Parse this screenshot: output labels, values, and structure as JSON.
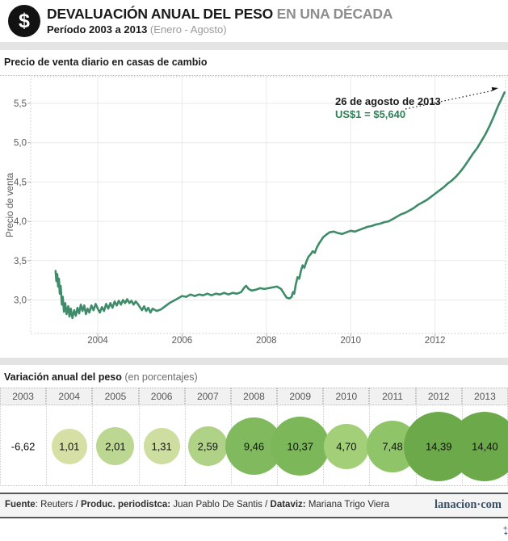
{
  "header": {
    "icon": "$",
    "title_main": "DEVALUACIÓN ANUAL DEL PESO",
    "title_accent": " EN UNA DÉCADA",
    "subtitle_bold": "Período 2003 a 2013",
    "subtitle_light": " (Enero - Agosto)"
  },
  "line_section": {
    "title": "Precio de venta diario en casas de cambio",
    "y_axis_label": "Precio de venta",
    "annotation": {
      "date": "26 de agosto de 2013",
      "value": "US$1 = $5,640",
      "value_color": "#2e8057"
    }
  },
  "table_section": {
    "title": "Variación anual del peso",
    "subtitle": " (en porcentajes)"
  },
  "chart_data": [
    {
      "type": "line",
      "title": "Precio de venta diario en casas de cambio",
      "xlabel": "",
      "ylabel": "Precio de venta",
      "x_ticks": [
        2004,
        2006,
        2008,
        2010,
        2012
      ],
      "x_tick_labels": [
        "2004",
        "2006",
        "2008",
        "2010",
        "2012"
      ],
      "y_tick_values": [
        5.5,
        5.0,
        4.5,
        4.0,
        3.5,
        3.0
      ],
      "y_tick_labels": [
        "5,5",
        "5,0",
        "4,5",
        "4,0",
        "3,5",
        "3,0"
      ],
      "xlim": [
        2003.0,
        2013.72
      ],
      "ylim": [
        2.58,
        5.84
      ],
      "grid": true,
      "line_color": "#3e8c69",
      "points": [
        [
          2003.0,
          3.37
        ],
        [
          2003.02,
          3.24
        ],
        [
          2003.04,
          3.33
        ],
        [
          2003.06,
          3.17
        ],
        [
          2003.08,
          3.27
        ],
        [
          2003.1,
          3.08
        ],
        [
          2003.12,
          3.18
        ],
        [
          2003.15,
          2.94
        ],
        [
          2003.17,
          3.04
        ],
        [
          2003.2,
          2.85
        ],
        [
          2003.23,
          2.96
        ],
        [
          2003.26,
          2.82
        ],
        [
          2003.3,
          2.92
        ],
        [
          2003.33,
          2.79
        ],
        [
          2003.36,
          2.89
        ],
        [
          2003.4,
          2.77
        ],
        [
          2003.44,
          2.87
        ],
        [
          2003.48,
          2.8
        ],
        [
          2003.52,
          2.9
        ],
        [
          2003.56,
          2.83
        ],
        [
          2003.6,
          2.94
        ],
        [
          2003.64,
          2.86
        ],
        [
          2003.68,
          2.93
        ],
        [
          2003.72,
          2.82
        ],
        [
          2003.76,
          2.89
        ],
        [
          2003.8,
          2.84
        ],
        [
          2003.85,
          2.93
        ],
        [
          2003.9,
          2.87
        ],
        [
          2003.95,
          2.95
        ],
        [
          2004.0,
          2.89
        ],
        [
          2004.05,
          2.84
        ],
        [
          2004.1,
          2.91
        ],
        [
          2004.15,
          2.86
        ],
        [
          2004.2,
          2.95
        ],
        [
          2004.25,
          2.89
        ],
        [
          2004.3,
          2.96
        ],
        [
          2004.35,
          2.9
        ],
        [
          2004.4,
          2.98
        ],
        [
          2004.45,
          2.93
        ],
        [
          2004.5,
          2.99
        ],
        [
          2004.55,
          2.94
        ],
        [
          2004.6,
          3.0
        ],
        [
          2004.65,
          2.96
        ],
        [
          2004.7,
          3.01
        ],
        [
          2004.75,
          2.96
        ],
        [
          2004.8,
          2.99
        ],
        [
          2004.85,
          2.94
        ],
        [
          2004.9,
          2.98
        ],
        [
          2004.95,
          2.95
        ],
        [
          2005.0,
          2.91
        ],
        [
          2005.05,
          2.87
        ],
        [
          2005.1,
          2.92
        ],
        [
          2005.15,
          2.86
        ],
        [
          2005.2,
          2.9
        ],
        [
          2005.25,
          2.84
        ],
        [
          2005.3,
          2.89
        ],
        [
          2005.4,
          2.86
        ],
        [
          2005.5,
          2.88
        ],
        [
          2005.6,
          2.92
        ],
        [
          2005.7,
          2.96
        ],
        [
          2005.8,
          2.99
        ],
        [
          2005.9,
          3.02
        ],
        [
          2006.0,
          3.05
        ],
        [
          2006.1,
          3.04
        ],
        [
          2006.2,
          3.07
        ],
        [
          2006.3,
          3.05
        ],
        [
          2006.4,
          3.07
        ],
        [
          2006.5,
          3.06
        ],
        [
          2006.6,
          3.08
        ],
        [
          2006.7,
          3.06
        ],
        [
          2006.8,
          3.08
        ],
        [
          2006.9,
          3.07
        ],
        [
          2007.0,
          3.09
        ],
        [
          2007.1,
          3.07
        ],
        [
          2007.2,
          3.09
        ],
        [
          2007.3,
          3.08
        ],
        [
          2007.4,
          3.1
        ],
        [
          2007.48,
          3.16
        ],
        [
          2007.52,
          3.18
        ],
        [
          2007.58,
          3.14
        ],
        [
          2007.65,
          3.12
        ],
        [
          2007.75,
          3.13
        ],
        [
          2007.85,
          3.15
        ],
        [
          2007.95,
          3.14
        ],
        [
          2008.05,
          3.15
        ],
        [
          2008.15,
          3.16
        ],
        [
          2008.25,
          3.17
        ],
        [
          2008.35,
          3.14
        ],
        [
          2008.42,
          3.08
        ],
        [
          2008.48,
          3.03
        ],
        [
          2008.55,
          3.02
        ],
        [
          2008.6,
          3.04
        ],
        [
          2008.63,
          3.1
        ],
        [
          2008.66,
          3.08
        ],
        [
          2008.7,
          3.2
        ],
        [
          2008.74,
          3.29
        ],
        [
          2008.78,
          3.27
        ],
        [
          2008.82,
          3.37
        ],
        [
          2008.86,
          3.44
        ],
        [
          2008.9,
          3.41
        ],
        [
          2008.95,
          3.49
        ],
        [
          2009.0,
          3.55
        ],
        [
          2009.05,
          3.58
        ],
        [
          2009.1,
          3.62
        ],
        [
          2009.15,
          3.6
        ],
        [
          2009.2,
          3.67
        ],
        [
          2009.25,
          3.72
        ],
        [
          2009.3,
          3.76
        ],
        [
          2009.35,
          3.8
        ],
        [
          2009.42,
          3.83
        ],
        [
          2009.5,
          3.86
        ],
        [
          2009.6,
          3.87
        ],
        [
          2009.7,
          3.85
        ],
        [
          2009.8,
          3.84
        ],
        [
          2009.9,
          3.86
        ],
        [
          2010.0,
          3.88
        ],
        [
          2010.1,
          3.87
        ],
        [
          2010.2,
          3.89
        ],
        [
          2010.3,
          3.91
        ],
        [
          2010.4,
          3.93
        ],
        [
          2010.5,
          3.94
        ],
        [
          2010.6,
          3.96
        ],
        [
          2010.7,
          3.97
        ],
        [
          2010.8,
          3.99
        ],
        [
          2010.9,
          4.0
        ],
        [
          2011.0,
          4.03
        ],
        [
          2011.1,
          4.06
        ],
        [
          2011.2,
          4.09
        ],
        [
          2011.3,
          4.11
        ],
        [
          2011.4,
          4.14
        ],
        [
          2011.5,
          4.17
        ],
        [
          2011.6,
          4.21
        ],
        [
          2011.7,
          4.24
        ],
        [
          2011.8,
          4.27
        ],
        [
          2011.9,
          4.31
        ],
        [
          2012.0,
          4.35
        ],
        [
          2012.1,
          4.39
        ],
        [
          2012.2,
          4.43
        ],
        [
          2012.3,
          4.48
        ],
        [
          2012.4,
          4.52
        ],
        [
          2012.5,
          4.57
        ],
        [
          2012.6,
          4.63
        ],
        [
          2012.7,
          4.7
        ],
        [
          2012.8,
          4.78
        ],
        [
          2012.9,
          4.86
        ],
        [
          2013.0,
          4.93
        ],
        [
          2013.1,
          5.02
        ],
        [
          2013.2,
          5.11
        ],
        [
          2013.3,
          5.22
        ],
        [
          2013.4,
          5.34
        ],
        [
          2013.5,
          5.47
        ],
        [
          2013.58,
          5.56
        ],
        [
          2013.65,
          5.64
        ]
      ],
      "annotation": {
        "date": "26 de agosto de 2013",
        "value": "US$1 = $5,640"
      }
    },
    {
      "type": "bubble",
      "title": "Variación anual del peso (en porcentajes)",
      "categories": [
        "2003",
        "2004",
        "2005",
        "2006",
        "2007",
        "2008",
        "2009",
        "2010",
        "2011",
        "2012",
        "2013"
      ],
      "values": [
        -6.62,
        1.01,
        2.01,
        1.31,
        2.59,
        9.46,
        10.37,
        4.7,
        7.48,
        14.39,
        14.4
      ],
      "labels": [
        "-6,62",
        "1,01",
        "2,01",
        "1,31",
        "2,59",
        "9,46",
        "10,37",
        "4,70",
        "7,48",
        "14,39",
        "14,40"
      ],
      "bubble_colors": [
        "#ffffff",
        "#d6e0a5",
        "#bcd791",
        "#cedda0",
        "#afd286",
        "#81ba5e",
        "#7cb75a",
        "#a3cf79",
        "#8fc468",
        "#6ca94b",
        "#6ca94b"
      ]
    }
  ],
  "footer": {
    "credits_parts": [
      {
        "text": "Fuente",
        "bold": true
      },
      {
        "text": ": Reuters / ",
        "bold": false
      },
      {
        "text": "Produc. periodistca:",
        "bold": true
      },
      {
        "text": " Juan Pablo De Santis / ",
        "bold": false
      },
      {
        "text": "Dataviz:",
        "bold": true
      },
      {
        "text": " Mariana Trigo Viera",
        "bold": false
      }
    ],
    "site": "lanacion·com"
  },
  "branding": {
    "tableau_wordmark": "+ab|eau",
    "tableau_tm": "·",
    "sparkle_colors": [
      "#e8762d",
      "#5b879b",
      "#5c6692",
      "#eb9129",
      "#1f457e",
      "#c72035",
      "#7199a6"
    ]
  }
}
